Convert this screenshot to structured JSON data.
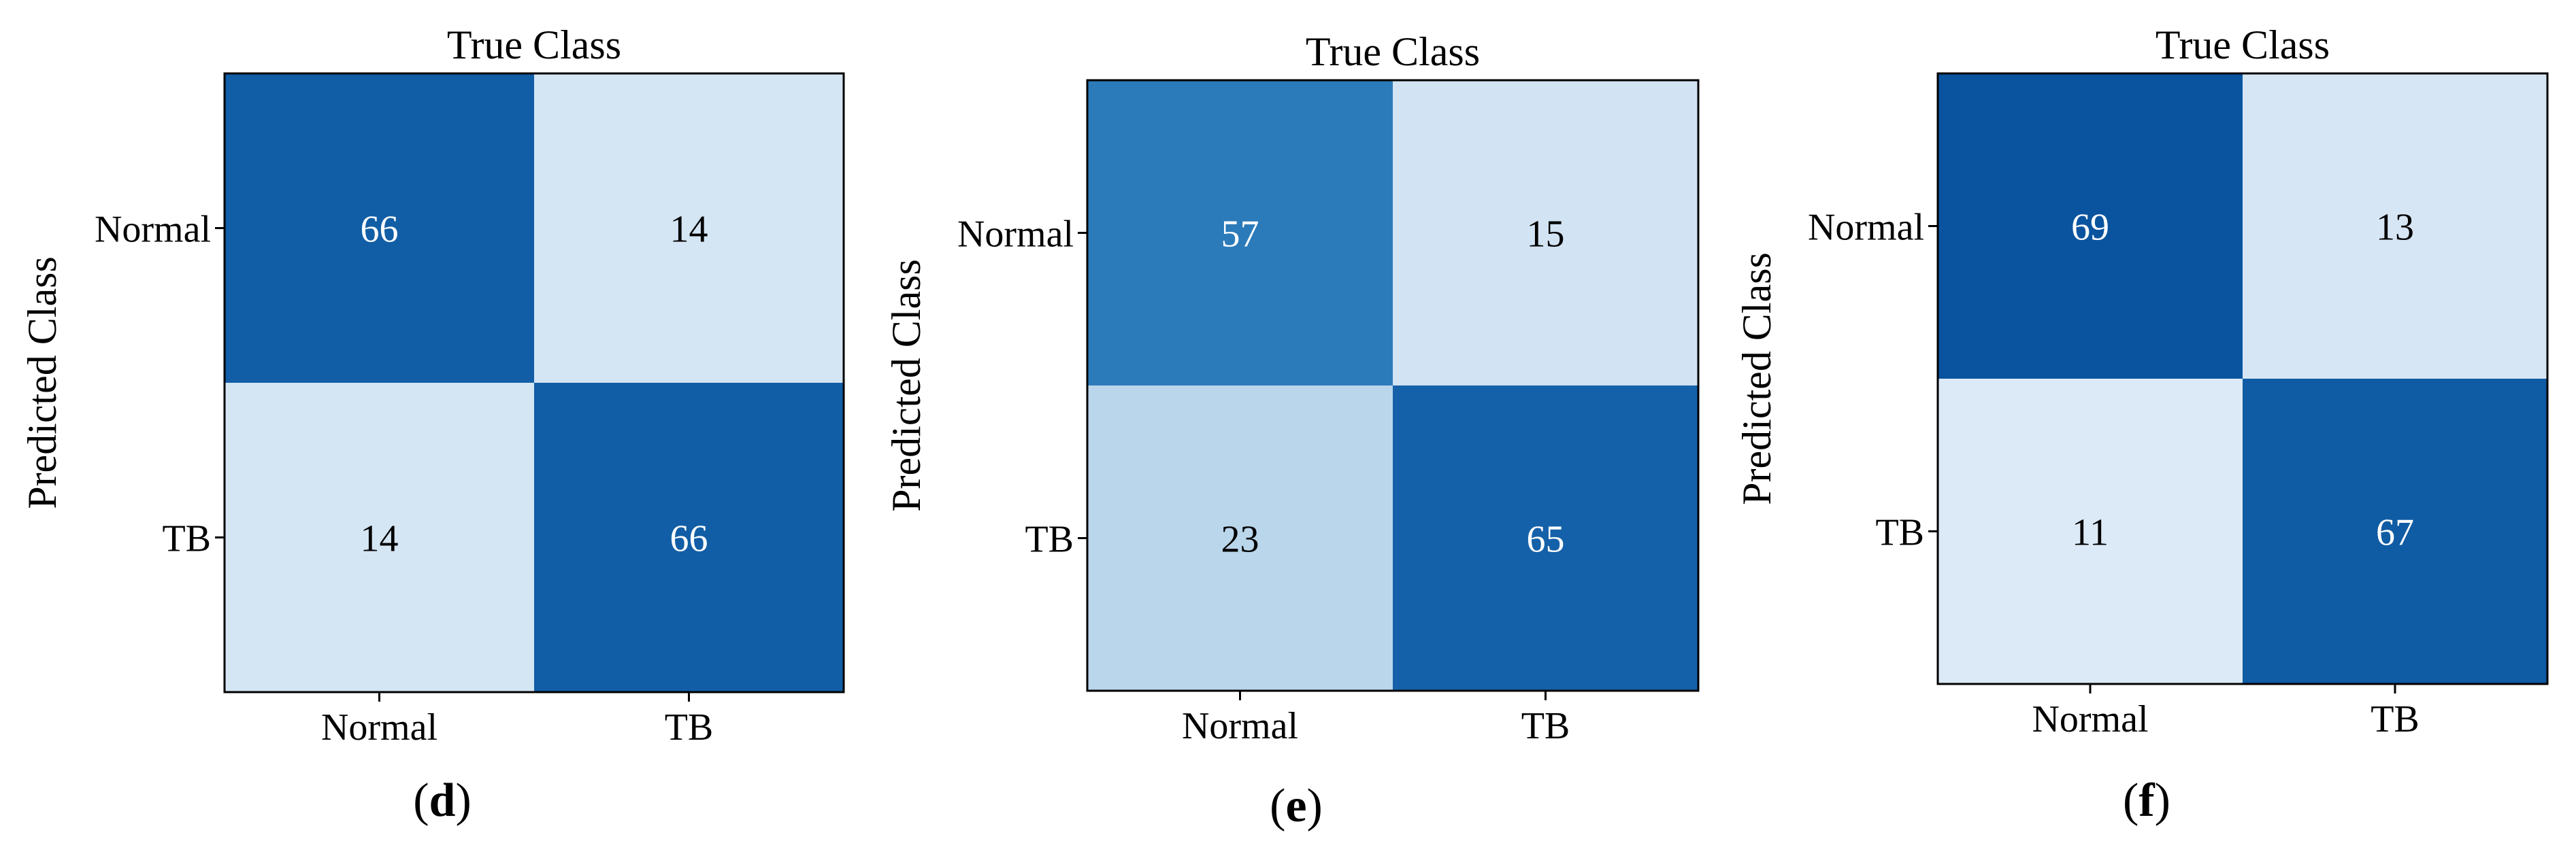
{
  "chart_data": [
    {
      "type": "heatmap",
      "panel_label": "d",
      "title": "True Class",
      "ylabel": "Predicted Class",
      "x_categories": [
        "Normal",
        "TB"
      ],
      "y_categories": [
        "Normal",
        "TB"
      ],
      "values": [
        [
          66,
          14
        ],
        [
          14,
          66
        ]
      ],
      "colormap": "Blues",
      "value_range": [
        0,
        80
      ]
    },
    {
      "type": "heatmap",
      "panel_label": "e",
      "title": "True Class",
      "ylabel": "Predicted Class",
      "x_categories": [
        "Normal",
        "TB"
      ],
      "y_categories": [
        "Normal",
        "TB"
      ],
      "values": [
        [
          57,
          15
        ],
        [
          23,
          65
        ]
      ],
      "colormap": "Blues",
      "value_range": [
        0,
        80
      ]
    },
    {
      "type": "heatmap",
      "panel_label": "f",
      "title": "True Class",
      "ylabel": "Predicted Class",
      "x_categories": [
        "Normal",
        "TB"
      ],
      "y_categories": [
        "Normal",
        "TB"
      ],
      "values": [
        [
          69,
          13
        ],
        [
          11,
          67
        ]
      ],
      "colormap": "Blues",
      "value_range": [
        0,
        80
      ]
    }
  ],
  "colors": {
    "low": "#f7fbff",
    "high": "#08306b",
    "text_on_dark": "#ffffff",
    "text_on_light": "#000000",
    "frame": "#000000"
  }
}
